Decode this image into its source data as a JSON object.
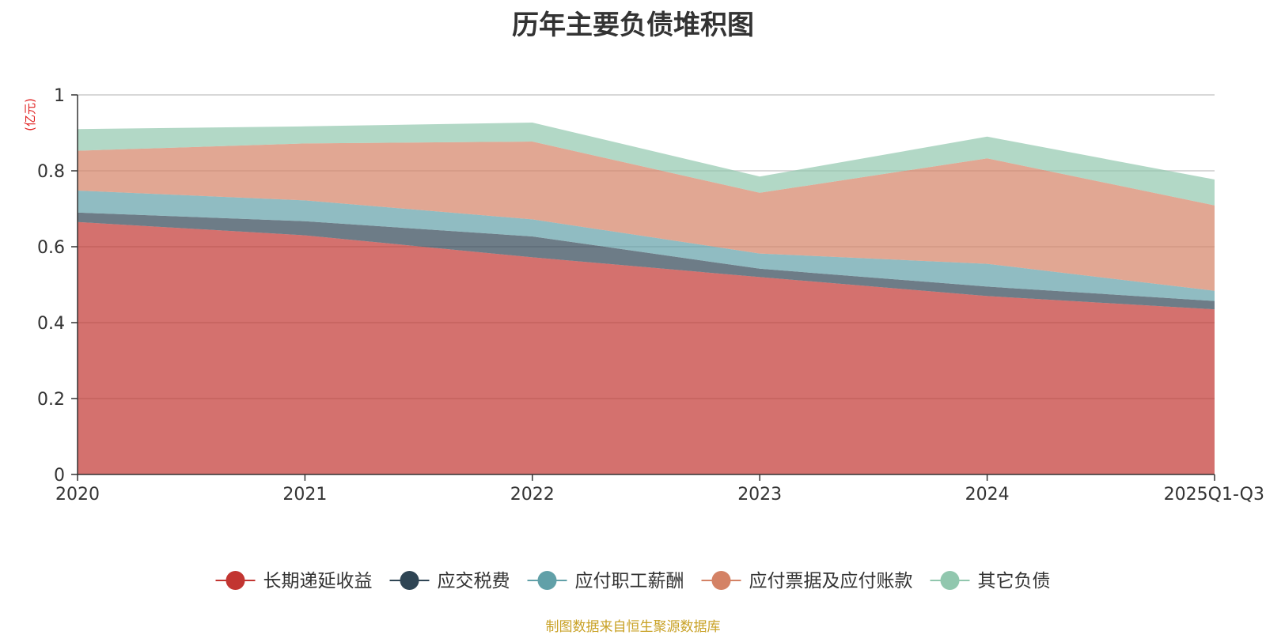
{
  "chart_data": {
    "type": "area",
    "stacked": true,
    "title": "历年主要负债堆积图",
    "ylabel": "(亿元)",
    "xlabel": "",
    "ylim": [
      0,
      1
    ],
    "yticks": [
      0,
      0.2,
      0.4,
      0.6,
      0.8,
      1
    ],
    "ytick_labels": [
      "0",
      "0.2",
      "0.4",
      "0.6",
      "0.8",
      "1"
    ],
    "categories": [
      "2020",
      "2021",
      "2022",
      "2023",
      "2024",
      "2025Q1-Q3"
    ],
    "grid": true,
    "legend_position": "bottom",
    "series": [
      {
        "name": "长期递延收益",
        "color": "#c23531",
        "values": [
          0.665,
          0.63,
          0.572,
          0.52,
          0.47,
          0.435
        ]
      },
      {
        "name": "应交税费",
        "color": "#2f4554",
        "values": [
          0.025,
          0.037,
          0.055,
          0.022,
          0.025,
          0.022
        ]
      },
      {
        "name": "应付职工薪酬",
        "color": "#61a0a8",
        "values": [
          0.058,
          0.055,
          0.045,
          0.04,
          0.06,
          0.027
        ]
      },
      {
        "name": "应付票据及应付账款",
        "color": "#d48265",
        "values": [
          0.105,
          0.15,
          0.205,
          0.16,
          0.278,
          0.225
        ]
      },
      {
        "name": "其它负债",
        "color": "#91c7ae",
        "values": [
          0.057,
          0.045,
          0.05,
          0.043,
          0.057,
          0.068
        ]
      }
    ]
  },
  "footer": {
    "source_text": "制图数据来自恒生聚源数据库"
  }
}
